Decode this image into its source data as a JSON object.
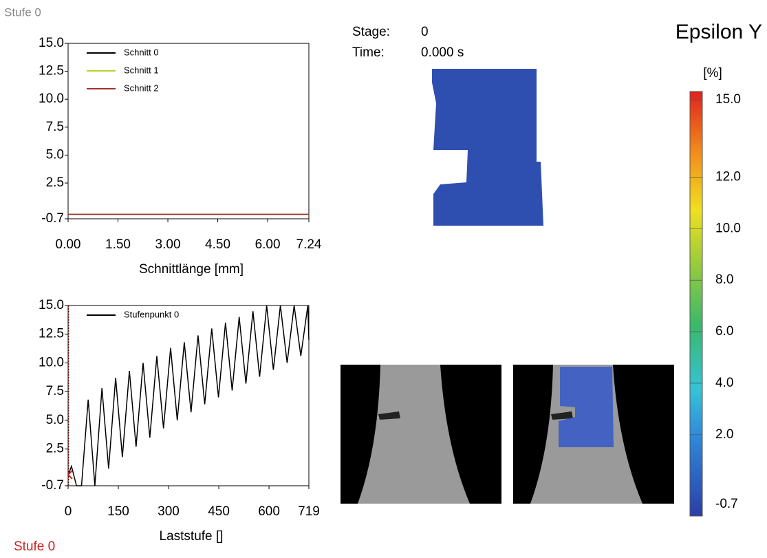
{
  "header": {
    "left_label": "Stufe 0",
    "stage_label": "Stage:",
    "stage_value": "0",
    "time_label": "Time:",
    "time_value": "0.000 s"
  },
  "chart_data": [
    {
      "type": "line",
      "xlabel": "Schnittlänge [mm]",
      "x": [
        0,
        7.24
      ],
      "series": [
        {
          "name": "Schnitt 0",
          "color": "#000000",
          "values": [
            -0.3,
            -0.3
          ]
        },
        {
          "name": "Schnitt 1",
          "color": "#b5d334",
          "values": [
            -0.3,
            -0.3
          ]
        },
        {
          "name": "Schnitt 2",
          "color": "#a03030",
          "values": [
            -0.3,
            -0.3
          ]
        }
      ],
      "xlim": [
        0,
        7.24
      ],
      "ylim": [
        -0.7,
        15
      ],
      "xticks": [
        {
          "value": 0,
          "label": "0.00"
        },
        {
          "value": 1.5,
          "label": "1.50"
        },
        {
          "value": 3,
          "label": "3.00"
        },
        {
          "value": 4.5,
          "label": "4.50"
        },
        {
          "value": 6,
          "label": "6.00"
        },
        7.24
      ],
      "yticks": [
        -0.7,
        2.5,
        {
          "value": 5,
          "label": "5.0"
        },
        7.5,
        {
          "value": 10,
          "label": "10.0"
        },
        12.5,
        {
          "value": 15,
          "label": "15.0"
        }
      ]
    },
    {
      "type": "line",
      "xlabel": "Laststufe []",
      "x": [
        0,
        10,
        25,
        40,
        60,
        80,
        101,
        121,
        142,
        162,
        183,
        203,
        224,
        244,
        265,
        285,
        306,
        326,
        347,
        367,
        388,
        408,
        429,
        449,
        470,
        490,
        511,
        531,
        552,
        572,
        593,
        613,
        634,
        654,
        675,
        695,
        716,
        719
      ],
      "series": [
        {
          "name": "Stufenpunkt 0",
          "color": "#000000",
          "values": [
            0.2,
            1.0,
            -0.7,
            -0.7,
            6.8,
            -0.7,
            7.8,
            0.8,
            8.7,
            1.8,
            9.3,
            2.7,
            10.0,
            3.5,
            10.6,
            4.3,
            11.3,
            5.0,
            11.8,
            5.7,
            12.4,
            6.4,
            13.0,
            7.0,
            13.5,
            7.6,
            14.0,
            8.2,
            14.5,
            8.8,
            15.0,
            9.4,
            15.0,
            10.0,
            15.0,
            10.6,
            15.0,
            12.0
          ]
        }
      ],
      "cursor": 0,
      "xlim": [
        0,
        719
      ],
      "ylim": [
        -0.7,
        15
      ],
      "xticks": [
        0,
        150,
        300,
        450,
        600,
        719
      ],
      "yticks": [
        -0.7,
        2.5,
        {
          "value": 5,
          "label": "5.0"
        },
        7.5,
        {
          "value": 10,
          "label": "10.0"
        },
        12.5,
        {
          "value": 15,
          "label": "15.0"
        }
      ]
    }
  ],
  "colorbar": {
    "title": "Epsilon Y",
    "unit": "[%]",
    "lim": [
      -0.7,
      15
    ],
    "ticks": [
      -0.7,
      {
        "value": 2,
        "label": "2.0"
      },
      {
        "value": 4,
        "label": "4.0"
      },
      {
        "value": 6,
        "label": "6.0"
      },
      {
        "value": 8,
        "label": "8.0"
      },
      {
        "value": 10,
        "label": "10.0"
      },
      {
        "value": 12,
        "label": "12.0"
      },
      {
        "value": 15,
        "label": "15.0"
      }
    ]
  },
  "footer": {
    "label": "Stufe 0"
  }
}
